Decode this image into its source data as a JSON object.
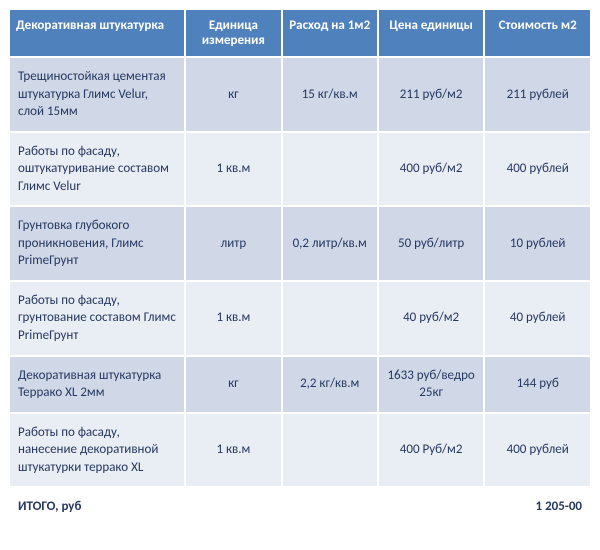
{
  "table": {
    "header_bg": "#4f81bd",
    "header_color": "#ffffff",
    "row_odd_bg": "#d0d8e8",
    "row_even_bg": "#e9edf4",
    "text_color": "#25385f",
    "columns": [
      "Декоративная штукатурка",
      "Единица измерения",
      "Расход на 1м2",
      "Цена единицы",
      "Стоимость м2"
    ],
    "rows": [
      {
        "desc": "Трещиностойкая цементая штукатурка Глимс Velur, слой 15мм",
        "unit": "кг",
        "cons": "15 кг/кв.м",
        "price": "211 руб/м2",
        "cost": "211 рублей"
      },
      {
        "desc": "Работы по фасаду, оштукатуривание составом Глимс Velur",
        "unit": "1 кв.м",
        "cons": "",
        "price": "400 руб/м2",
        "cost": "400 рублей"
      },
      {
        "desc": "Грунтовка глубокого проникновения, Глимс PrimeГрунт",
        "unit": "литр",
        "cons": "0,2 литр/кв.м",
        "price": "50 руб/литр",
        "cost": "10 рублей"
      },
      {
        "desc": "Работы по фасаду, грунтование составом Глимс  PrimeГрунт",
        "unit": "1 кв.м",
        "cons": "",
        "price": "40 руб/м2",
        "cost": "40 рублей"
      },
      {
        "desc": "Декоративная штукатурка Террако XL  2мм",
        "unit": "кг",
        "cons": "2,2 кг/кв.м",
        "price": "1633 руб/ведро 25кг",
        "cost": "144 руб"
      },
      {
        "desc": "Работы по фасаду, нанесение декоративной штукатурки террако XL",
        "unit": "1 кв.м",
        "cons": "",
        "price": "400 Руб/м2",
        "cost": "400 рублей"
      }
    ],
    "total_label": "ИТОГО, руб",
    "total_value": "1 205-00"
  }
}
